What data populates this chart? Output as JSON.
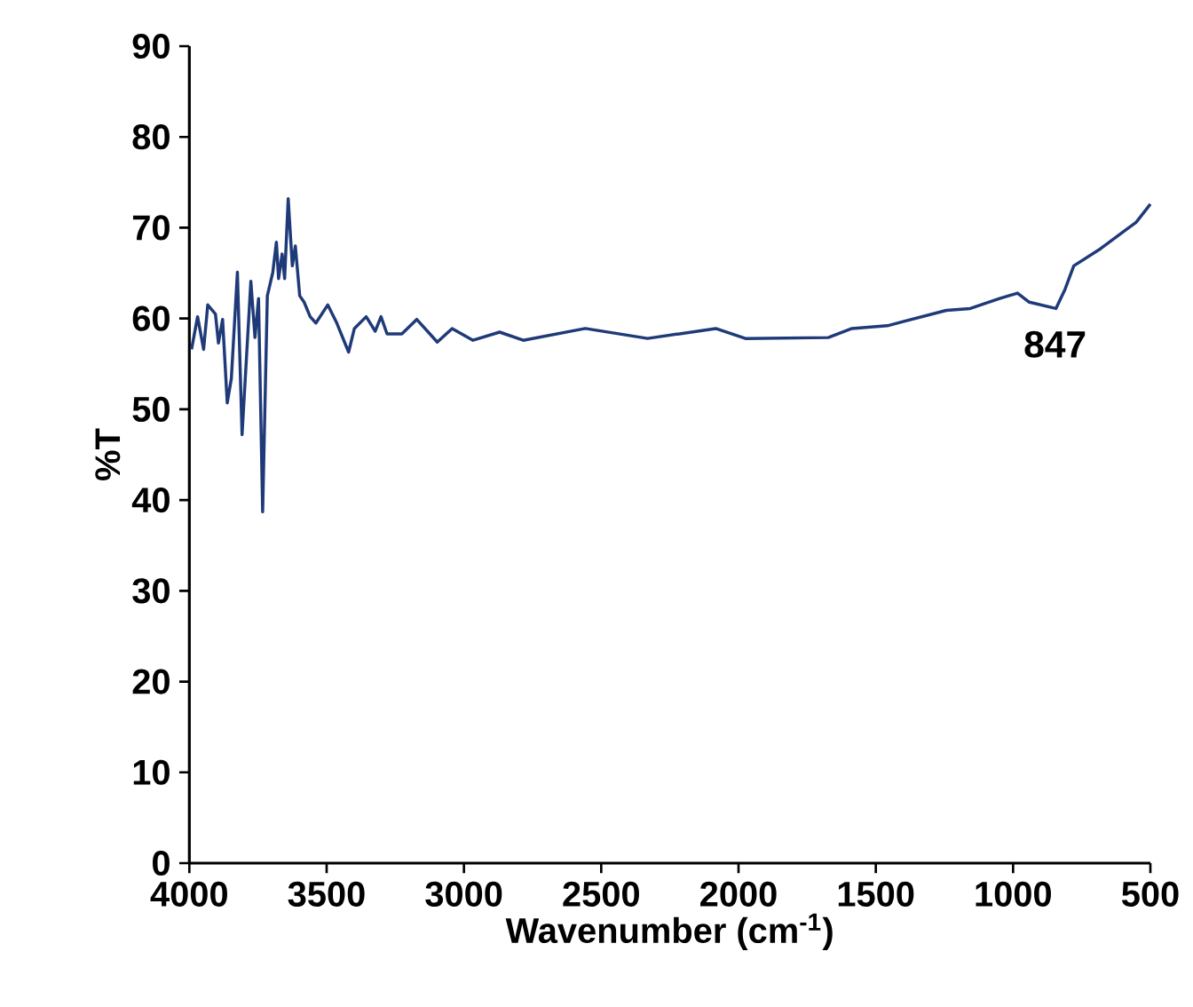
{
  "chart_data": {
    "type": "line",
    "xlabel": "Wavenumber (cm$^{-1}$)",
    "ylabel": "%T",
    "x": [
      3992,
      3970,
      3948,
      3933,
      3905,
      3894,
      3879,
      3862,
      3847,
      3825,
      3808,
      3776,
      3761,
      3748,
      3733,
      3716,
      3696,
      3683,
      3675,
      3662,
      3653,
      3640,
      3625,
      3614,
      3598,
      3582,
      3560,
      3539,
      3496,
      3463,
      3420,
      3399,
      3356,
      3323,
      3302,
      3280,
      3226,
      3172,
      3097,
      3043,
      2967,
      2870,
      2784,
      2558,
      2331,
      2083,
      1975,
      1673,
      1587,
      1458,
      1243,
      1156,
      1049,
      984,
      941,
      844,
      811,
      779,
      681,
      552,
      500
    ],
    "series": [
      {
        "color": "#1f3a78",
        "values": [
          56.6,
          60.2,
          56.6,
          61.5,
          60.5,
          57.3,
          59.9,
          50.7,
          53.4,
          65.1,
          47.2,
          64.1,
          57.9,
          62.2,
          38.7,
          62.5,
          65.1,
          68.4,
          64.4,
          67.1,
          64.4,
          73.2,
          65.8,
          68.0,
          62.5,
          61.8,
          60.2,
          59.5,
          61.5,
          59.5,
          56.3,
          58.9,
          60.2,
          58.6,
          60.2,
          58.3,
          58.3,
          59.9,
          57.4,
          58.9,
          57.6,
          58.5,
          57.6,
          58.9,
          57.8,
          58.9,
          57.8,
          57.9,
          58.9,
          59.2,
          60.9,
          61.1,
          62.2,
          62.8,
          61.8,
          61.1,
          63.2,
          65.8,
          67.7,
          70.6,
          72.6
        ]
      }
    ],
    "xlim": [
      4000,
      500
    ],
    "xticks": [
      4000,
      3500,
      3000,
      2500,
      2000,
      1500,
      1000,
      500
    ],
    "ylim": [
      0,
      90
    ],
    "yticks": [
      0,
      10,
      20,
      30,
      40,
      50,
      60,
      70,
      80,
      90
    ],
    "grid": false,
    "marker": "none",
    "line_style": "solid",
    "annotations": [
      {
        "text": "847",
        "x": 847,
        "y": 61.1
      }
    ]
  }
}
